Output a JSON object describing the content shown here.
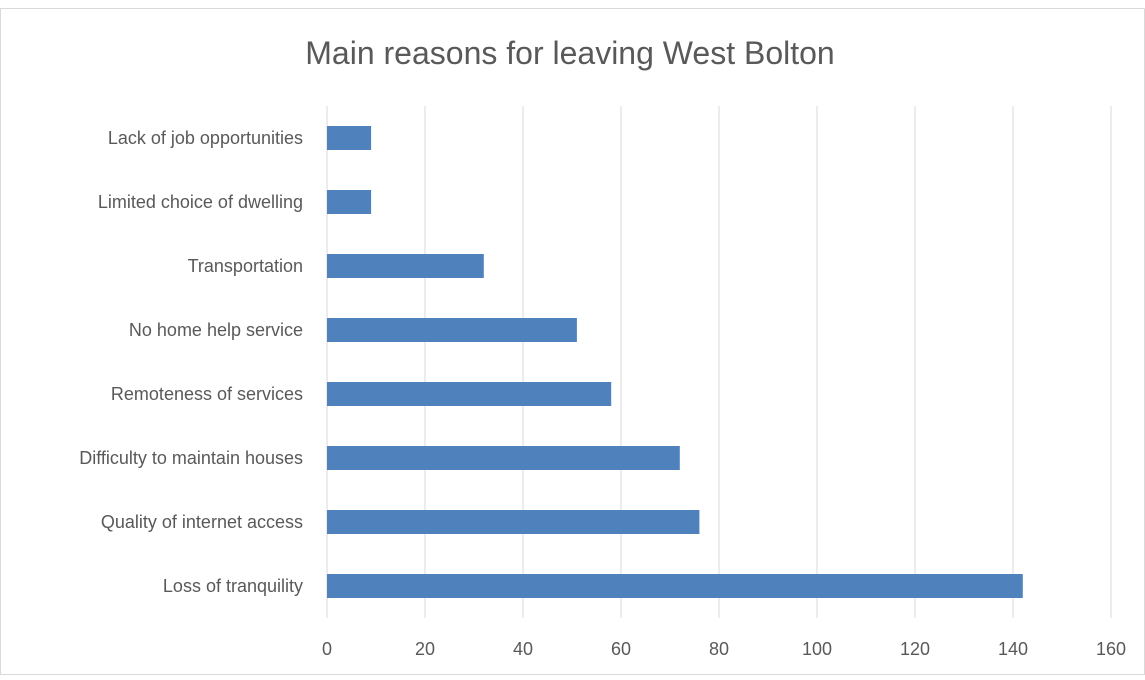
{
  "chart_data": {
    "type": "bar",
    "orientation": "horizontal",
    "title": "Main reasons for leaving West Bolton",
    "categories": [
      "Lack of job opportunities",
      "Limited choice of dwelling",
      "Transportation",
      "No home help service",
      "Remoteness of services",
      "Difficulty to maintain houses",
      "Quality of internet access",
      "Loss of tranquility"
    ],
    "values": [
      9,
      9,
      32,
      51,
      58,
      72,
      76,
      142
    ],
    "xlim": [
      0,
      160
    ],
    "x_ticks": [
      "0",
      "20",
      "40",
      "60",
      "80",
      "100",
      "120",
      "140",
      "160"
    ],
    "xlabel": "",
    "ylabel": "",
    "grid": "vertical",
    "legend": "none",
    "colors": {
      "bar": "#4f81bd",
      "grid": "#d9d9d9",
      "text": "#595959",
      "frame": "#d9d9d9"
    }
  }
}
